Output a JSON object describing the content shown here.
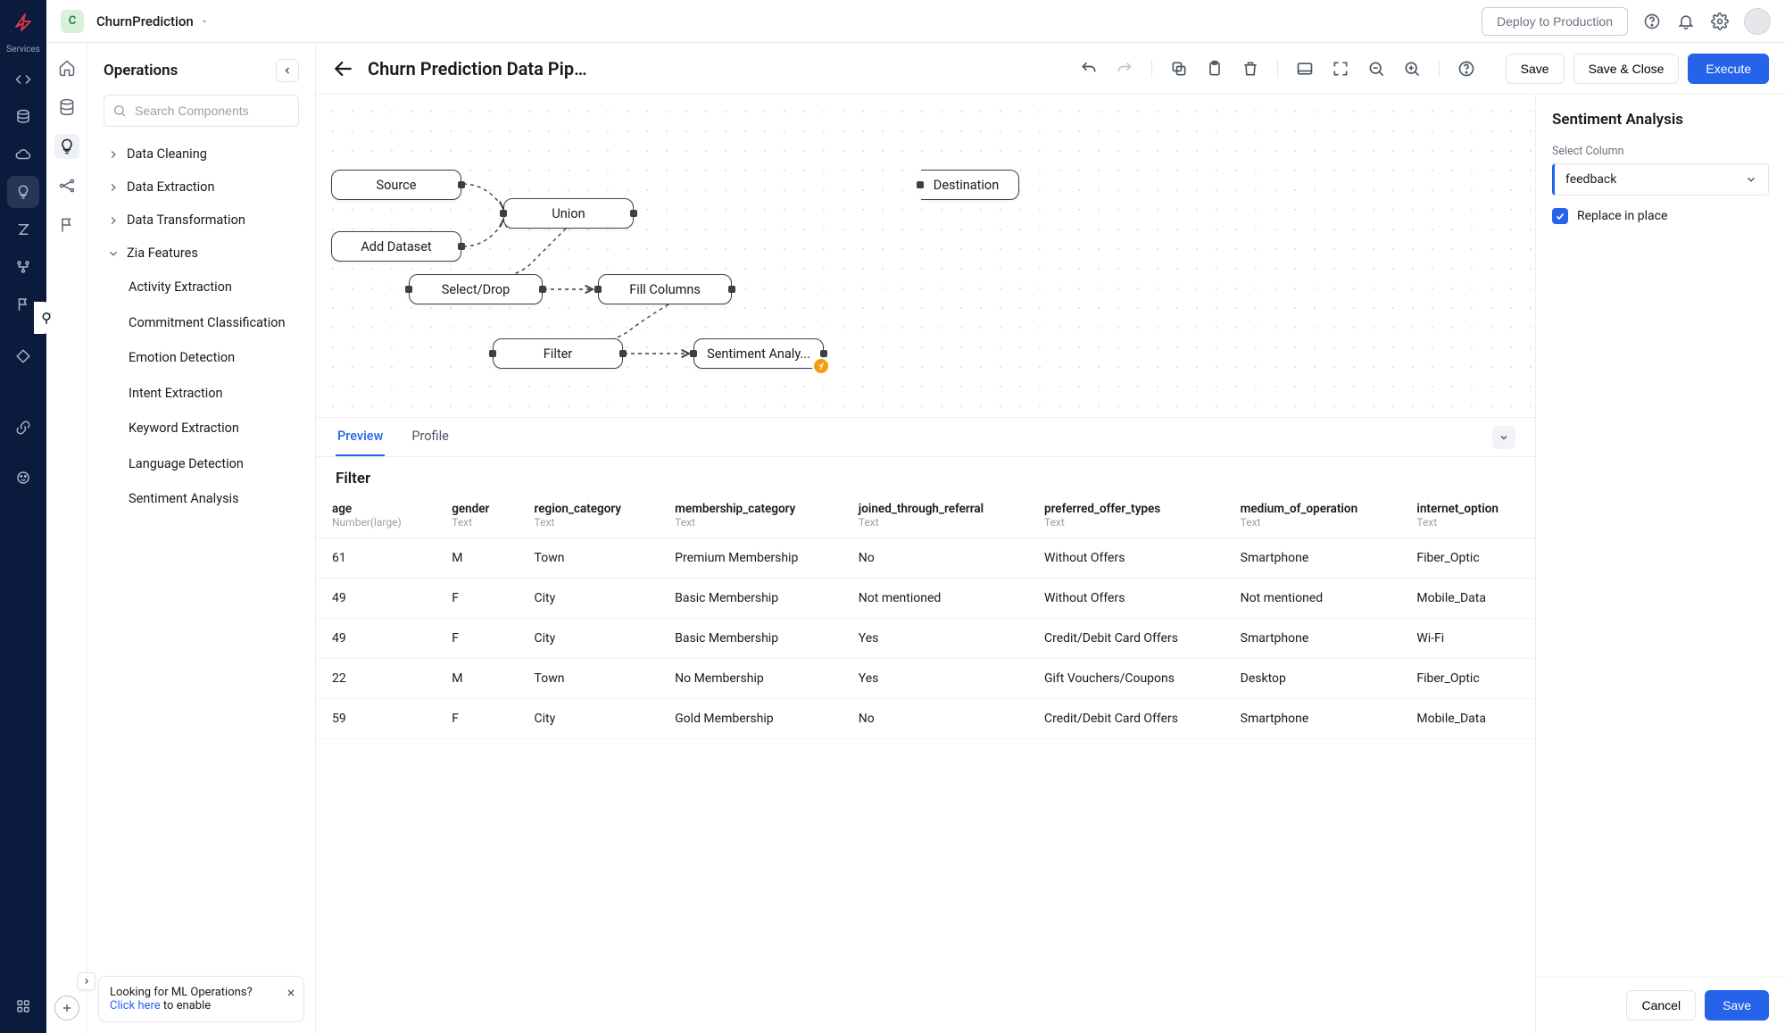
{
  "header": {
    "project_badge": "C",
    "project_name": "ChurnPrediction",
    "deploy_label": "Deploy to Production"
  },
  "left_rail": {
    "services_label": "Services"
  },
  "operations": {
    "title": "Operations",
    "search_placeholder": "Search Components",
    "groups": [
      {
        "label": "Data Cleaning",
        "expanded": false
      },
      {
        "label": "Data Extraction",
        "expanded": false
      },
      {
        "label": "Data Transformation",
        "expanded": false
      }
    ],
    "zia_group": "Zia Features",
    "zia_items": [
      "Activity Extraction",
      "Commitment Classification",
      "Emotion Detection",
      "Intent Extraction",
      "Keyword Extraction",
      "Language Detection",
      "Sentiment Analysis"
    ],
    "ml_hint_line1": "Looking for ML Operations?",
    "ml_hint_link": "Click here",
    "ml_hint_line2": " to enable"
  },
  "toolbar": {
    "page_title": "Churn Prediction Data Pipe...",
    "save": "Save",
    "save_close": "Save & Close",
    "execute": "Execute"
  },
  "canvas": {
    "nodes": {
      "source": "Source",
      "add_dataset": "Add Dataset",
      "union": "Union",
      "select_drop": "Select/Drop",
      "fill_columns": "Fill Columns",
      "filter": "Filter",
      "sentiment": "Sentiment Analy...",
      "destination": "Destination"
    }
  },
  "preview": {
    "tab1": "Preview",
    "tab2": "Profile",
    "filter_heading": "Filter",
    "columns": [
      {
        "name": "age",
        "type": "Number(large)"
      },
      {
        "name": "gender",
        "type": "Text"
      },
      {
        "name": "region_category",
        "type": "Text"
      },
      {
        "name": "membership_category",
        "type": "Text"
      },
      {
        "name": "joined_through_referral",
        "type": "Text"
      },
      {
        "name": "preferred_offer_types",
        "type": "Text"
      },
      {
        "name": "medium_of_operation",
        "type": "Text"
      },
      {
        "name": "internet_option",
        "type": "Text"
      }
    ],
    "rows": [
      [
        "61",
        "M",
        "Town",
        "Premium Membership",
        "No",
        "Without Offers",
        "Smartphone",
        "Fiber_Optic"
      ],
      [
        "49",
        "F",
        "City",
        "Basic Membership",
        "Not mentioned",
        "Without Offers",
        "Not mentioned",
        "Mobile_Data"
      ],
      [
        "49",
        "F",
        "City",
        "Basic Membership",
        "Yes",
        "Credit/Debit Card Offers",
        "Smartphone",
        "Wi-Fi"
      ],
      [
        "22",
        "M",
        "Town",
        "No Membership",
        "Yes",
        "Gift Vouchers/Coupons",
        "Desktop",
        "Fiber_Optic"
      ],
      [
        "59",
        "F",
        "City",
        "Gold Membership",
        "No",
        "Credit/Debit Card Offers",
        "Smartphone",
        "Mobile_Data"
      ]
    ]
  },
  "side_panel": {
    "title": "Sentiment Analysis",
    "select_label": "Select Column",
    "select_value": "feedback",
    "checkbox_label": "Replace in place",
    "cancel": "Cancel",
    "save": "Save"
  }
}
